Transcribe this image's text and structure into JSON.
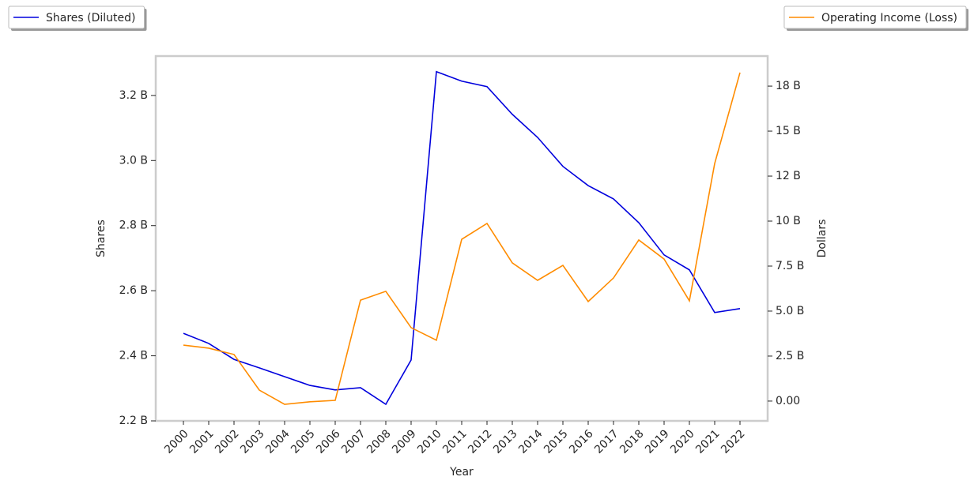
{
  "chart_data": {
    "type": "line",
    "xlabel": "Year",
    "ylabel": "Shares",
    "y2label": "Dollars",
    "categories": [
      "2000",
      "2001",
      "2002",
      "2003",
      "2004",
      "2005",
      "2006",
      "2007",
      "2008",
      "2009",
      "2010",
      "2011",
      "2012",
      "2013",
      "2014",
      "2015",
      "2016",
      "2017",
      "2018",
      "2019",
      "2020",
      "2021",
      "2022"
    ],
    "series": [
      {
        "name": "Shares (Diluted)",
        "color": "#0000dd",
        "axis": "y",
        "legend": "upper left",
        "values": [
          2.469,
          2.438,
          2.389,
          2.363,
          2.336,
          2.309,
          2.295,
          2.302,
          2.251,
          2.387,
          3.273,
          3.244,
          3.227,
          3.142,
          3.071,
          2.982,
          2.923,
          2.882,
          2.809,
          2.71,
          2.664,
          2.533,
          2.545
        ]
      },
      {
        "name": "Operating Income (Loss)",
        "color": "#ff8c00",
        "axis": "y2",
        "legend": "upper right",
        "values": [
          3.11,
          2.94,
          2.59,
          0.61,
          -0.18,
          -0.04,
          0.04,
          5.61,
          6.1,
          4.08,
          3.38,
          8.99,
          9.87,
          7.68,
          6.71,
          7.54,
          5.53,
          6.84,
          8.95,
          7.89,
          5.57,
          13.2,
          18.25
        ]
      }
    ],
    "ylim": [
      2.2,
      3.321
    ],
    "yticks": [
      {
        "value": 2.2,
        "label": "2.2 B"
      },
      {
        "value": 2.4,
        "label": "2.4 B"
      },
      {
        "value": 2.6,
        "label": "2.6 B"
      },
      {
        "value": 2.8,
        "label": "2.8 B"
      },
      {
        "value": 3.0,
        "label": "3.0 B"
      },
      {
        "value": 3.2,
        "label": "3.2 B"
      }
    ],
    "y2lim": [
      -1.1,
      19.17
    ],
    "y2ticks": [
      {
        "value": 0,
        "label": "0.00"
      },
      {
        "value": 2.5,
        "label": "2.5 B"
      },
      {
        "value": 5,
        "label": "5.0 B"
      },
      {
        "value": 7.5,
        "label": "7.5 B"
      },
      {
        "value": 10,
        "label": "10 B"
      },
      {
        "value": 12.5,
        "label": "12 B"
      },
      {
        "value": 15,
        "label": "15 B"
      },
      {
        "value": 17.5,
        "label": "18 B"
      }
    ]
  }
}
